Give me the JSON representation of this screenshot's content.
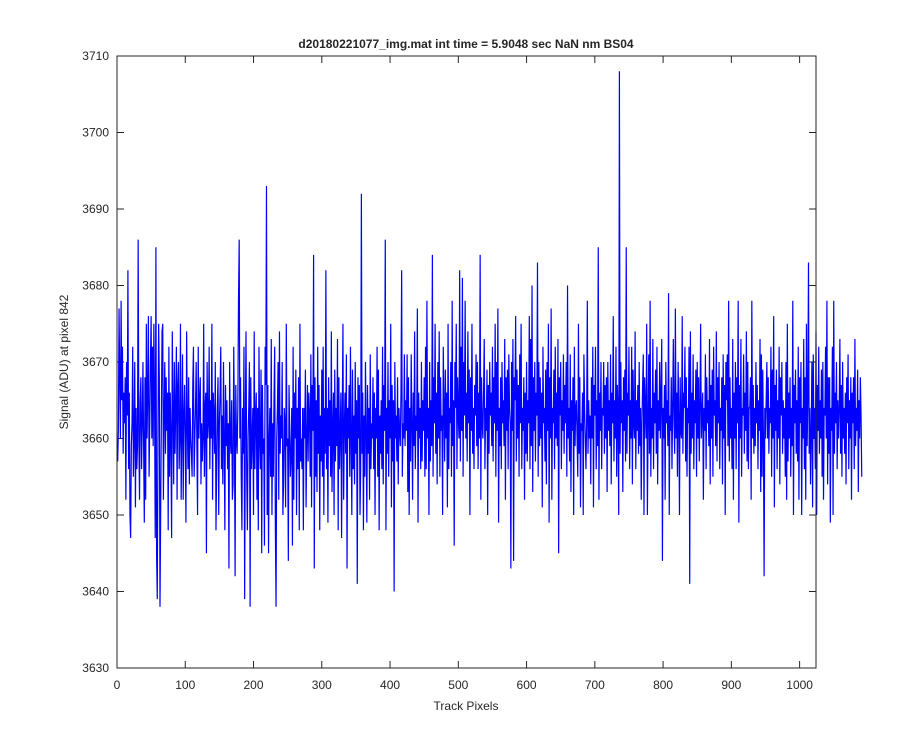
{
  "chart_data": {
    "type": "line",
    "title": "d20180221077_img.mat int time = 5.9048 sec  NaN nm BS04",
    "xlabel": "Track Pixels",
    "ylabel": "Signal (ADU) at pixel 842",
    "xlim": [
      0,
      1024
    ],
    "ylim": [
      3630,
      3710
    ],
    "xticks": [
      0,
      100,
      200,
      300,
      400,
      500,
      600,
      700,
      800,
      900,
      1000
    ],
    "yticks": [
      3630,
      3640,
      3650,
      3660,
      3670,
      3680,
      3690,
      3700,
      3710
    ],
    "grid": false,
    "line_color": "#0000ff",
    "series": [
      {
        "x_start": 1,
        "x_step": 1,
        "values": [
          3657,
          3661,
          3677,
          3668,
          3660,
          3678,
          3665,
          3672,
          3658,
          3666,
          3662,
          3668,
          3652,
          3670,
          3663,
          3682,
          3656,
          3666,
          3650,
          3647,
          3659,
          3662,
          3672,
          3655,
          3660,
          3670,
          3651,
          3664,
          3656,
          3659,
          3686,
          3660,
          3652,
          3665,
          3668,
          3656,
          3662,
          3670,
          3659,
          3649,
          3668,
          3652,
          3675,
          3660,
          3666,
          3676,
          3655,
          3662,
          3670,
          3676,
          3660,
          3672,
          3659,
          3675,
          3666,
          3647,
          3685,
          3645,
          3639,
          3660,
          3675,
          3668,
          3638,
          3651,
          3663,
          3674,
          3675,
          3652,
          3663,
          3670,
          3658,
          3668,
          3661,
          3666,
          3648,
          3672,
          3655,
          3666,
          3660,
          3647,
          3674,
          3664,
          3654,
          3670,
          3658,
          3664,
          3672,
          3652,
          3667,
          3670,
          3656,
          3660,
          3675,
          3652,
          3661,
          3671,
          3652,
          3663,
          3667,
          3660,
          3649,
          3674,
          3662,
          3656,
          3668,
          3654,
          3664,
          3660,
          3658,
          3655,
          3667,
          3672,
          3655,
          3660,
          3664,
          3670,
          3659,
          3650,
          3672,
          3660,
          3665,
          3668,
          3654,
          3662,
          3657,
          3660,
          3675,
          3655,
          3664,
          3666,
          3645,
          3670,
          3660,
          3662,
          3672,
          3656,
          3665,
          3660,
          3675,
          3652,
          3666,
          3663,
          3658,
          3670,
          3648,
          3656,
          3664,
          3668,
          3650,
          3662,
          3666,
          3672,
          3656,
          3663,
          3654,
          3670,
          3660,
          3648,
          3667,
          3659,
          3665,
          3656,
          3662,
          3643,
          3670,
          3660,
          3658,
          3665,
          3652,
          3654,
          3672,
          3662,
          3642,
          3667,
          3660,
          3658,
          3664,
          3678,
          3686,
          3660,
          3668,
          3655,
          3648,
          3664,
          3658,
          3672,
          3639,
          3662,
          3674,
          3655,
          3648,
          3660,
          3664,
          3670,
          3638,
          3668,
          3656,
          3660,
          3664,
          3650,
          3674,
          3656,
          3663,
          3666,
          3652,
          3664,
          3648,
          3672,
          3660,
          3656,
          3669,
          3645,
          3667,
          3658,
          3660,
          3646,
          3672,
          3667,
          3693,
          3650,
          3667,
          3645,
          3660,
          3664,
          3655,
          3673,
          3650,
          3662,
          3655,
          3665,
          3672,
          3648,
          3638,
          3660,
          3664,
          3670,
          3652,
          3674,
          3658,
          3663,
          3660,
          3670,
          3650,
          3654,
          3664,
          3662,
          3651,
          3675,
          3659,
          3660,
          3644,
          3667,
          3661,
          3655,
          3658,
          3664,
          3646,
          3672,
          3652,
          3666,
          3660,
          3669,
          3650,
          3664,
          3656,
          3668,
          3648,
          3675,
          3657,
          3660,
          3656,
          3664,
          3648,
          3664,
          3660,
          3669,
          3651,
          3660,
          3667,
          3657,
          3666,
          3663,
          3655,
          3671,
          3651,
          3667,
          3661,
          3684,
          3643,
          3668,
          3655,
          3665,
          3653,
          3672,
          3658,
          3667,
          3648,
          3663,
          3657,
          3669,
          3655,
          3672,
          3650,
          3664,
          3658,
          3682,
          3656,
          3664,
          3649,
          3668,
          3659,
          3665,
          3655,
          3674,
          3653,
          3661,
          3666,
          3650,
          3669,
          3657,
          3664,
          3659,
          3673,
          3648,
          3668,
          3656,
          3661,
          3666,
          3647,
          3663,
          3675,
          3652,
          3661,
          3666,
          3658,
          3671,
          3643,
          3664,
          3660,
          3667,
          3655,
          3672,
          3660,
          3650,
          3669,
          3656,
          3663,
          3654,
          3670,
          3658,
          3665,
          3641,
          3668,
          3660,
          3667,
          3650,
          3656,
          3692,
          3658,
          3666,
          3648,
          3663,
          3655,
          3670,
          3661,
          3649,
          3667,
          3658,
          3664,
          3652,
          3671,
          3656,
          3662,
          3660,
          3668,
          3656,
          3666,
          3650,
          3664,
          3660,
          3672,
          3655,
          3669,
          3648,
          3663,
          3658,
          3665,
          3656,
          3672,
          3654,
          3667,
          3661,
          3686,
          3648,
          3664,
          3658,
          3670,
          3655,
          3665,
          3660,
          3675,
          3651,
          3667,
          3657,
          3665,
          3640,
          3670,
          3660,
          3663,
          3657,
          3668,
          3654,
          3664,
          3661,
          3659,
          3666,
          3682,
          3655,
          3662,
          3660,
          3671,
          3659,
          3665,
          3661,
          3671,
          3653,
          3668,
          3650,
          3664,
          3657,
          3671,
          3662,
          3652,
          3666,
          3659,
          3674,
          3656,
          3663,
          3661,
          3677,
          3649,
          3666,
          3660,
          3664,
          3656,
          3670,
          3657,
          3665,
          3661,
          3668,
          3655,
          3672,
          3656,
          3678,
          3660,
          3664,
          3650,
          3670,
          3657,
          3665,
          3659,
          3684,
          3655,
          3668,
          3662,
          3675,
          3658,
          3666,
          3654,
          3670,
          3660,
          3674,
          3655,
          3668,
          3661,
          3663,
          3650,
          3672,
          3664,
          3657,
          3669,
          3660,
          3666,
          3651,
          3675,
          3656,
          3664,
          3662,
          3670,
          3655,
          3678,
          3659,
          3665,
          3646,
          3670,
          3664,
          3675,
          3656,
          3668,
          3663,
          3660,
          3682,
          3657,
          3672,
          3661,
          3681,
          3655,
          3670,
          3663,
          3678,
          3660,
          3666,
          3657,
          3674,
          3662,
          3669,
          3650,
          3668,
          3661,
          3675,
          3658,
          3664,
          3656,
          3667,
          3663,
          3671,
          3659,
          3670,
          3656,
          3666,
          3660,
          3684,
          3652,
          3668,
          3662,
          3660,
          3666,
          3673,
          3656,
          3664,
          3661,
          3669,
          3650,
          3667,
          3658,
          3670,
          3663,
          3666,
          3659,
          3672,
          3657,
          3668,
          3662,
          3675,
          3655,
          3670,
          3661,
          3677,
          3649,
          3664,
          3659,
          3668,
          3656,
          3670,
          3662,
          3665,
          3659,
          3673,
          3652,
          3668,
          3661,
          3669,
          3656,
          3671,
          3664,
          3662,
          3643,
          3670,
          3661,
          3673,
          3644,
          3668,
          3665,
          3676,
          3657,
          3669,
          3660,
          3667,
          3655,
          3671,
          3662,
          3675,
          3656,
          3664,
          3661,
          3668,
          3652,
          3666,
          3658,
          3670,
          3657,
          3665,
          3662,
          3676,
          3656,
          3673,
          3659,
          3680,
          3653,
          3668,
          3661,
          3670,
          3657,
          3666,
          3663,
          3683,
          3655,
          3670,
          3659,
          3668,
          3660,
          3666,
          3651,
          3672,
          3662,
          3664,
          3657,
          3669,
          3654,
          3670,
          3661,
          3675,
          3649,
          3668,
          3660,
          3677,
          3652,
          3664,
          3662,
          3669,
          3656,
          3672,
          3660,
          3666,
          3659,
          3673,
          3645,
          3668,
          3663,
          3670,
          3656,
          3665,
          3661,
          3671,
          3658,
          3667,
          3662,
          3670,
          3655,
          3680,
          3660,
          3664,
          3657,
          3671,
          3653,
          3665,
          3661,
          3668,
          3650,
          3672,
          3659,
          3664,
          3665,
          3660,
          3655,
          3675,
          3658,
          3668,
          3651,
          3662,
          3661,
          3666,
          3650,
          3671,
          3664,
          3660,
          3656,
          3662,
          3678,
          3658,
          3665,
          3660,
          3663,
          3654,
          3668,
          3660,
          3672,
          3651,
          3667,
          3663,
          3672,
          3656,
          3665,
          3659,
          3685,
          3652,
          3666,
          3661,
          3670,
          3656,
          3664,
          3663,
          3670,
          3658,
          3667,
          3660,
          3668,
          3653,
          3670,
          3661,
          3665,
          3659,
          3671,
          3654,
          3666,
          3662,
          3676,
          3657,
          3665,
          3660,
          3672,
          3655,
          3667,
          3663,
          3650,
          3708,
          3658,
          3670,
          3662,
          3665,
          3653,
          3668,
          3661,
          3669,
          3657,
          3685,
          3658,
          3666,
          3663,
          3672,
          3656,
          3665,
          3660,
          3672,
          3654,
          3669,
          3662,
          3660,
          3674,
          3656,
          3665,
          3661,
          3667,
          3658,
          3670,
          3659,
          3664,
          3652,
          3662,
          3667,
          3671,
          3650,
          3668,
          3664,
          3660,
          3675,
          3650,
          3662,
          3671,
          3658,
          3678,
          3655,
          3664,
          3660,
          3673,
          3656,
          3666,
          3662,
          3669,
          3658,
          3672,
          3654,
          3665,
          3661,
          3670,
          3660,
          3666,
          3673,
          3644,
          3664,
          3660,
          3667,
          3652,
          3670,
          3662,
          3665,
          3659,
          3679,
          3650,
          3663,
          3661,
          3668,
          3656,
          3664,
          3673,
          3662,
          3658,
          3677,
          3660,
          3666,
          3655,
          3670,
          3663,
          3650,
          3668,
          3661,
          3660,
          3676,
          3658,
          3666,
          3664,
          3672,
          3657,
          3668,
          3655,
          3664,
          3662,
          3672,
          3641,
          3674,
          3658,
          3666,
          3660,
          3671,
          3656,
          3665,
          3662,
          3669,
          3655,
          3670,
          3660,
          3668,
          3657,
          3664,
          3675,
          3660,
          3663,
          3666,
          3652,
          3664,
          3661,
          3671,
          3656,
          3668,
          3662,
          3665,
          3659,
          3673,
          3654,
          3667,
          3660,
          3669,
          3655,
          3672,
          3663,
          3665,
          3659,
          3674,
          3657,
          3668,
          3662,
          3670,
          3656,
          3664,
          3661,
          3668,
          3654,
          3671,
          3660,
          3667,
          3650,
          3670,
          3665,
          3671,
          3659,
          3678,
          3657,
          3668,
          3660,
          3664,
          3656,
          3673,
          3652,
          3666,
          3660,
          3670,
          3656,
          3668,
          3662,
          3678,
          3649,
          3667,
          3660,
          3673,
          3655,
          3664,
          3663,
          3671,
          3658,
          3666,
          3661,
          3674,
          3657,
          3670,
          3656,
          3664,
          3664,
          3668,
          3652,
          3678,
          3660,
          3667,
          3658,
          3664,
          3659,
          3670,
          3662,
          3667,
          3656,
          3665,
          3661,
          3673,
          3653,
          3671,
          3655,
          3669,
          3660,
          3642,
          3664,
          3660,
          3665,
          3670,
          3660,
          3668,
          3658,
          3664,
          3662,
          3672,
          3655,
          3669,
          3660,
          3676,
          3651,
          3667,
          3661,
          3669,
          3656,
          3665,
          3660,
          3672,
          3654,
          3668,
          3663,
          3670,
          3658,
          3665,
          3660,
          3664,
          3655,
          3670,
          3652,
          3675,
          3657,
          3666,
          3660,
          3668,
          3655,
          3664,
          3659,
          3678,
          3650,
          3667,
          3662,
          3669,
          3658,
          3665,
          3657,
          3672,
          3652,
          3668,
          3662,
          3670,
          3650,
          3664,
          3660,
          3673,
          3656,
          3668,
          3652,
          3675,
          3659,
          3665,
          3683,
          3658,
          3664,
          3654,
          3661,
          3670,
          3651,
          3671,
          3660,
          3664,
          3656,
          3674,
          3650,
          3667,
          3661,
          3672,
          3658,
          3665,
          3660,
          3669,
          3655,
          3670,
          3652,
          3664,
          3663,
          3672,
          3660,
          3678,
          3654,
          3668,
          3658,
          3668,
          3649,
          3664,
          3661,
          3672,
          3650,
          3678,
          3658,
          3666,
          3662,
          3670,
          3656,
          3665,
          3660,
          3664,
          3673,
          3658,
          3667,
          3655,
          3670,
          3660,
          3664,
          3658,
          3666,
          3654,
          3668,
          3662,
          3671,
          3656,
          3665,
          3660,
          3668,
          3652,
          3666,
          3662,
          3668,
          3656,
          3673,
          3659,
          3664,
          3661,
          3669,
          3653,
          3665,
          3660,
          3668,
          3663,
          3655
        ]
      }
    ]
  }
}
